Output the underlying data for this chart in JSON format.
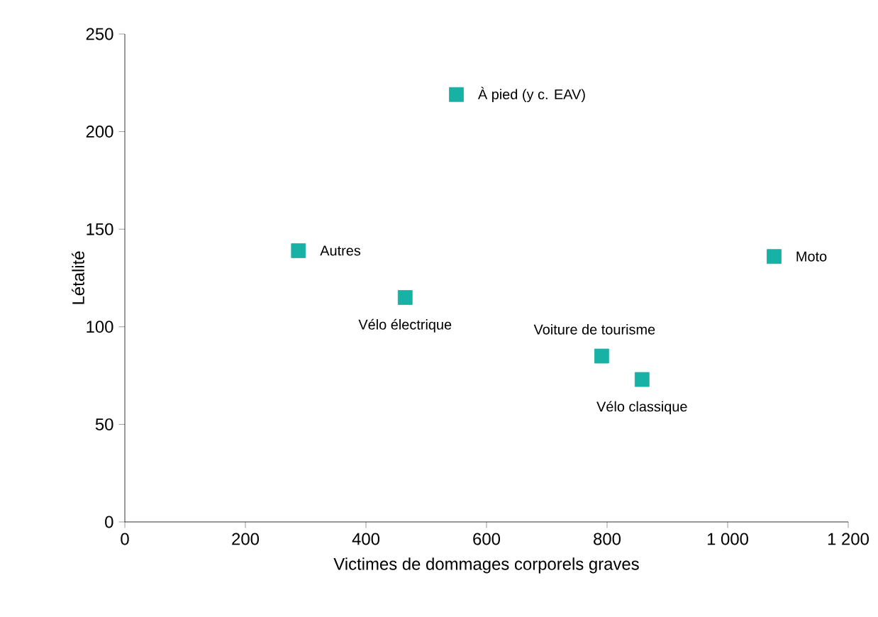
{
  "chart_data": {
    "type": "scatter",
    "xlabel": "Victimes de dommages corporels graves",
    "ylabel": "Létalité",
    "x": [
      550,
      288,
      465,
      1077,
      791,
      858
    ],
    "series": [
      {
        "color": "#17b1a6",
        "values": [
          219,
          139,
          115,
          136,
          85,
          73
        ]
      }
    ],
    "marker": "square",
    "grid": false,
    "xlim": [
      0,
      1200
    ],
    "xticks": [
      0,
      200,
      400,
      600,
      800,
      {
        "value": 1000,
        "label": "1 000"
      },
      {
        "value": 1200,
        "label": "1 200"
      }
    ],
    "ylim": [
      0,
      250
    ],
    "yticks": [
      0,
      50,
      100,
      150,
      200,
      250
    ],
    "annotations": [
      {
        "text": "À pied (y c. EAV)",
        "x": 550,
        "y": 219
      },
      {
        "text": "Autres",
        "x": 288,
        "y": 139
      },
      {
        "text": "Vélo électrique",
        "x": 465,
        "y": 115
      },
      {
        "text": "Moto",
        "x": 1077,
        "y": 136
      },
      {
        "text": "Voiture de tourisme",
        "x": 791,
        "y": 85
      },
      {
        "text": "Vélo classique",
        "x": 858,
        "y": 73
      }
    ]
  }
}
